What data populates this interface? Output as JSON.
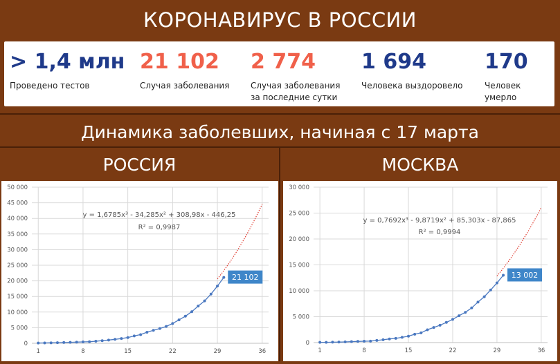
{
  "header": {
    "title": "КОРОНАВИРУС В РОССИИ"
  },
  "stats": [
    {
      "value": "> 1,4 млн",
      "label": "Проведено тестов",
      "color": "#1f3a8a"
    },
    {
      "value": "21 102",
      "label": "Случая заболевания",
      "color": "#f0604a"
    },
    {
      "value": "2 774",
      "label_lines": [
        "Случая заболевания",
        "за последние сутки"
      ],
      "color": "#f0604a"
    },
    {
      "value": "1 694",
      "label": "Человека выздоровело",
      "color": "#1f3a8a"
    },
    {
      "value": "170",
      "label": "Человек умерло",
      "color": "#1f3a8a"
    }
  ],
  "subtitle": "Динамика заболевших, начиная с 17 марта",
  "colors": {
    "background": "#7a3a12",
    "series": "#4a78c0",
    "trend": "#e03a2e",
    "callout": "#3f86c9"
  },
  "chart_data": [
    {
      "type": "scatter",
      "title": "РОССИЯ",
      "xlabel": "",
      "ylabel": "",
      "xlim": [
        0,
        37
      ],
      "ylim": [
        0,
        50000
      ],
      "x_ticks": [
        1,
        8,
        15,
        22,
        29,
        36
      ],
      "y_ticks": [
        "0",
        "5 000",
        "10 000",
        "15 000",
        "20 000",
        "25 000",
        "30 000",
        "35 000",
        "40 000",
        "45 000",
        "50 000"
      ],
      "grid": true,
      "series": [
        {
          "points": [
            [
              1,
              93
            ],
            [
              2,
              114
            ],
            [
              3,
              147
            ],
            [
              4,
              199
            ],
            [
              5,
              253
            ],
            [
              6,
              306
            ],
            [
              7,
              367
            ],
            [
              8,
              438
            ],
            [
              9,
              495
            ],
            [
              10,
              658
            ],
            [
              11,
              840
            ],
            [
              12,
              1036
            ],
            [
              13,
              1264
            ],
            [
              14,
              1534
            ],
            [
              15,
              1836
            ],
            [
              16,
              2337
            ],
            [
              17,
              2777
            ],
            [
              18,
              3548
            ],
            [
              19,
              4149
            ],
            [
              20,
              4731
            ],
            [
              21,
              5389
            ],
            [
              22,
              6343
            ],
            [
              23,
              7497
            ],
            [
              24,
              8672
            ],
            [
              25,
              10131
            ],
            [
              26,
              11917
            ],
            [
              27,
              13584
            ],
            [
              28,
              15770
            ],
            [
              29,
              18328
            ],
            [
              30,
              21102
            ]
          ]
        }
      ],
      "trendline": {
        "equation": "y = 1,6785x³ - 34,285x² + 308,98x - 446,25",
        "r2": "R² = 0,9987",
        "coef": [
          1.6785,
          -34.285,
          308.98,
          -446.25
        ],
        "x_range": [
          29,
          36
        ]
      },
      "callout": {
        "text": "21 102",
        "x": 30,
        "y": 21102
      }
    },
    {
      "type": "scatter",
      "title": "МОСКВА",
      "xlabel": "",
      "ylabel": "",
      "xlim": [
        0,
        37
      ],
      "ylim": [
        0,
        30000
      ],
      "x_ticks": [
        1,
        8,
        15,
        22,
        29,
        36
      ],
      "y_ticks": [
        "0",
        "5 000",
        "10 000",
        "15 000",
        "20 000",
        "25 000",
        "30 000"
      ],
      "grid": true,
      "series": [
        {
          "points": [
            [
              1,
              50
            ],
            [
              2,
              56
            ],
            [
              3,
              86
            ],
            [
              4,
              98
            ],
            [
              5,
              137
            ],
            [
              6,
              191
            ],
            [
              7,
              231
            ],
            [
              8,
              262
            ],
            [
              9,
              290
            ],
            [
              10,
              410
            ],
            [
              11,
              546
            ],
            [
              12,
              703
            ],
            [
              13,
              817
            ],
            [
              14,
              1014
            ],
            [
              15,
              1226
            ],
            [
              16,
              1613
            ],
            [
              17,
              1880
            ],
            [
              18,
              2475
            ],
            [
              19,
              2923
            ],
            [
              20,
              3357
            ],
            [
              21,
              3893
            ],
            [
              22,
              4484
            ],
            [
              23,
              5181
            ],
            [
              24,
              5841
            ],
            [
              25,
              6698
            ],
            [
              26,
              7822
            ],
            [
              27,
              8852
            ],
            [
              28,
              10158
            ],
            [
              29,
              11513
            ],
            [
              30,
              13002
            ]
          ]
        }
      ],
      "trendline": {
        "equation": "y = 0,7692x³ - 9,8719x² + 85,303x - 87,865",
        "r2": "R² = 0,9994",
        "coef": [
          0.7692,
          -9.8719,
          85.303,
          -87.865
        ],
        "x_range": [
          29,
          36
        ]
      },
      "callout": {
        "text": "13 002",
        "x": 30,
        "y": 13002
      }
    }
  ]
}
